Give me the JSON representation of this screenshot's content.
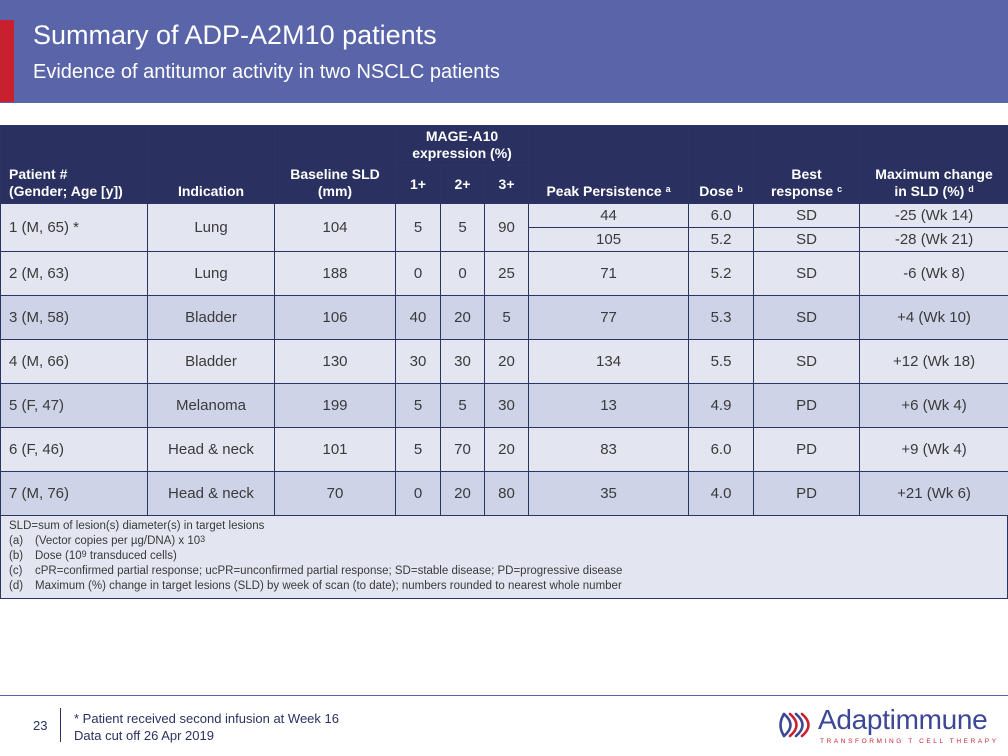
{
  "header": {
    "title": "Summary of ADP-A2M10 patients",
    "subtitle": "Evidence of antitumor activity in two NSCLC patients"
  },
  "table": {
    "headers": {
      "patient": [
        "Patient #",
        "(Gender; Age [y])"
      ],
      "indication": "Indication",
      "baseline": [
        "Baseline SLD",
        "(mm)"
      ],
      "mage": [
        "MAGE-A10",
        "expression (%)"
      ],
      "mage_sub": [
        "1+",
        "2+",
        "3+"
      ],
      "peak": "Peak Persistence",
      "peak_sup": "a",
      "dose": "Dose",
      "dose_sup": "b",
      "best": [
        "Best",
        "response"
      ],
      "best_sup": "c",
      "maxchange": [
        "Maximum change",
        "in SLD (%)"
      ],
      "maxchange_sup": "d"
    },
    "rows": [
      {
        "patient": "1 (M, 65) *",
        "indication": "Lung",
        "baseline": "104",
        "m1": "5",
        "m2": "5",
        "m3": "90",
        "peak": "44",
        "dose": "6.0",
        "best": "SD",
        "change": "-25 (Wk 14)",
        "peak_b": "105",
        "dose_b": "5.2",
        "best_b": "SD",
        "change_b": "-28 (Wk 21)"
      },
      {
        "patient": "2 (M, 63)",
        "indication": "Lung",
        "baseline": "188",
        "m1": "0",
        "m2": "0",
        "m3": "25",
        "peak": "71",
        "dose": "5.2",
        "best": "SD",
        "change": "-6 (Wk 8)"
      },
      {
        "patient": "3 (M, 58)",
        "indication": "Bladder",
        "baseline": "106",
        "m1": "40",
        "m2": "20",
        "m3": "5",
        "peak": "77",
        "dose": "5.3",
        "best": "SD",
        "change": "+4 (Wk 10)"
      },
      {
        "patient": "4 (M, 66)",
        "indication": "Bladder",
        "baseline": "130",
        "m1": "30",
        "m2": "30",
        "m3": "20",
        "peak": "134",
        "dose": "5.5",
        "best": "SD",
        "change": "+12 (Wk 18)"
      },
      {
        "patient": "5 (F, 47)",
        "indication": "Melanoma",
        "baseline": "199",
        "m1": "5",
        "m2": "5",
        "m3": "30",
        "peak": "13",
        "dose": "4.9",
        "best": "PD",
        "change": "+6 (Wk 4)"
      },
      {
        "patient": "6 (F, 46)",
        "indication": "Head & neck",
        "baseline": "101",
        "m1": "5",
        "m2": "70",
        "m3": "20",
        "peak": "83",
        "dose": "6.0",
        "best": "PD",
        "change": "+9 (Wk 4)"
      },
      {
        "patient": "7 (M, 76)",
        "indication": "Head & neck",
        "baseline": "70",
        "m1": "0",
        "m2": "20",
        "m3": "80",
        "peak": "35",
        "dose": "4.0",
        "best": "PD",
        "change": "+21 (Wk 6)"
      }
    ]
  },
  "notes": {
    "sld": "SLD=sum of lesion(s) diameter(s) in target lesions",
    "a_key": "(a)",
    "a_text": "(Vector copies per µg/DNA) x 10",
    "a_sup": "3",
    "b_key": "(b)",
    "b_text_1": "Dose (10",
    "b_sup": "9",
    "b_text_2": " transduced cells)",
    "c_key": "(c)",
    "c_text": "cPR=confirmed partial response; ucPR=unconfirmed partial response; SD=stable disease; PD=progressive disease",
    "d_key": "(d)",
    "d_text": "Maximum (%) change in target lesions (SLD) by week of scan (to date); numbers rounded to nearest whole number"
  },
  "footer": {
    "page_number": "23",
    "note_1": "* Patient received second infusion at Week 16",
    "note_2": "Data cut off 26 Apr 2019"
  },
  "logo": {
    "name": "Adaptimmune",
    "tagline": "TRANSFORMING T CELL THERAPY"
  },
  "colors": {
    "header_bg": "#5964a9",
    "accent_red": "#c8202f",
    "table_header_bg": "#2a3161",
    "row_light": "#e3e6f1",
    "row_dark": "#ced3e8"
  }
}
